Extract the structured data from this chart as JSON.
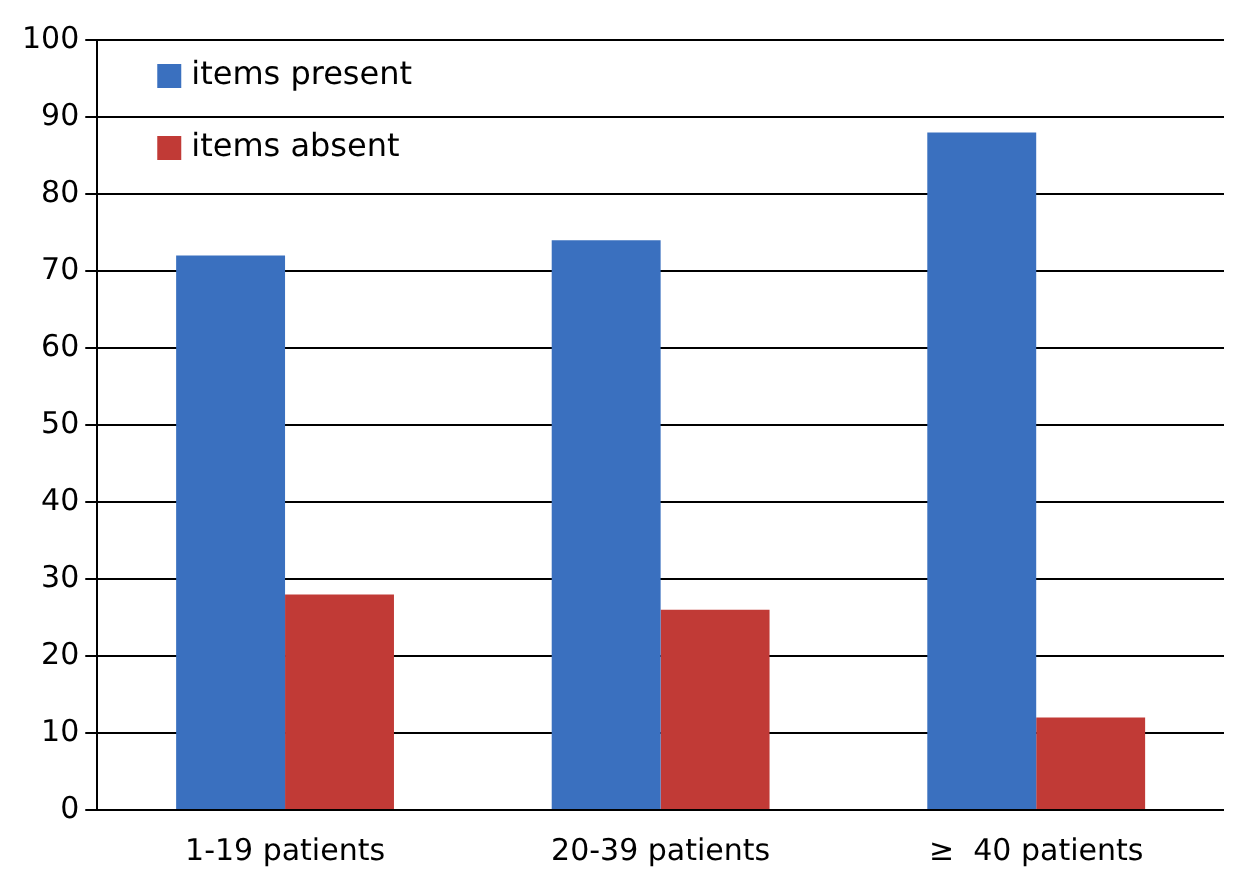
{
  "chart_data": {
    "type": "bar",
    "categories": [
      "1-19 patients",
      "20-39 patients",
      "≥  40 patients"
    ],
    "series": [
      {
        "name": "items present",
        "color": "#3a70bf",
        "values": [
          72,
          74,
          88
        ]
      },
      {
        "name": "items absent",
        "color": "#c13a36",
        "values": [
          28,
          26,
          12
        ]
      }
    ],
    "ylim": [
      0,
      100
    ],
    "yticks": [
      0,
      10,
      20,
      30,
      40,
      50,
      60,
      70,
      80,
      90,
      100
    ],
    "grid": "y",
    "legend": "top left"
  }
}
